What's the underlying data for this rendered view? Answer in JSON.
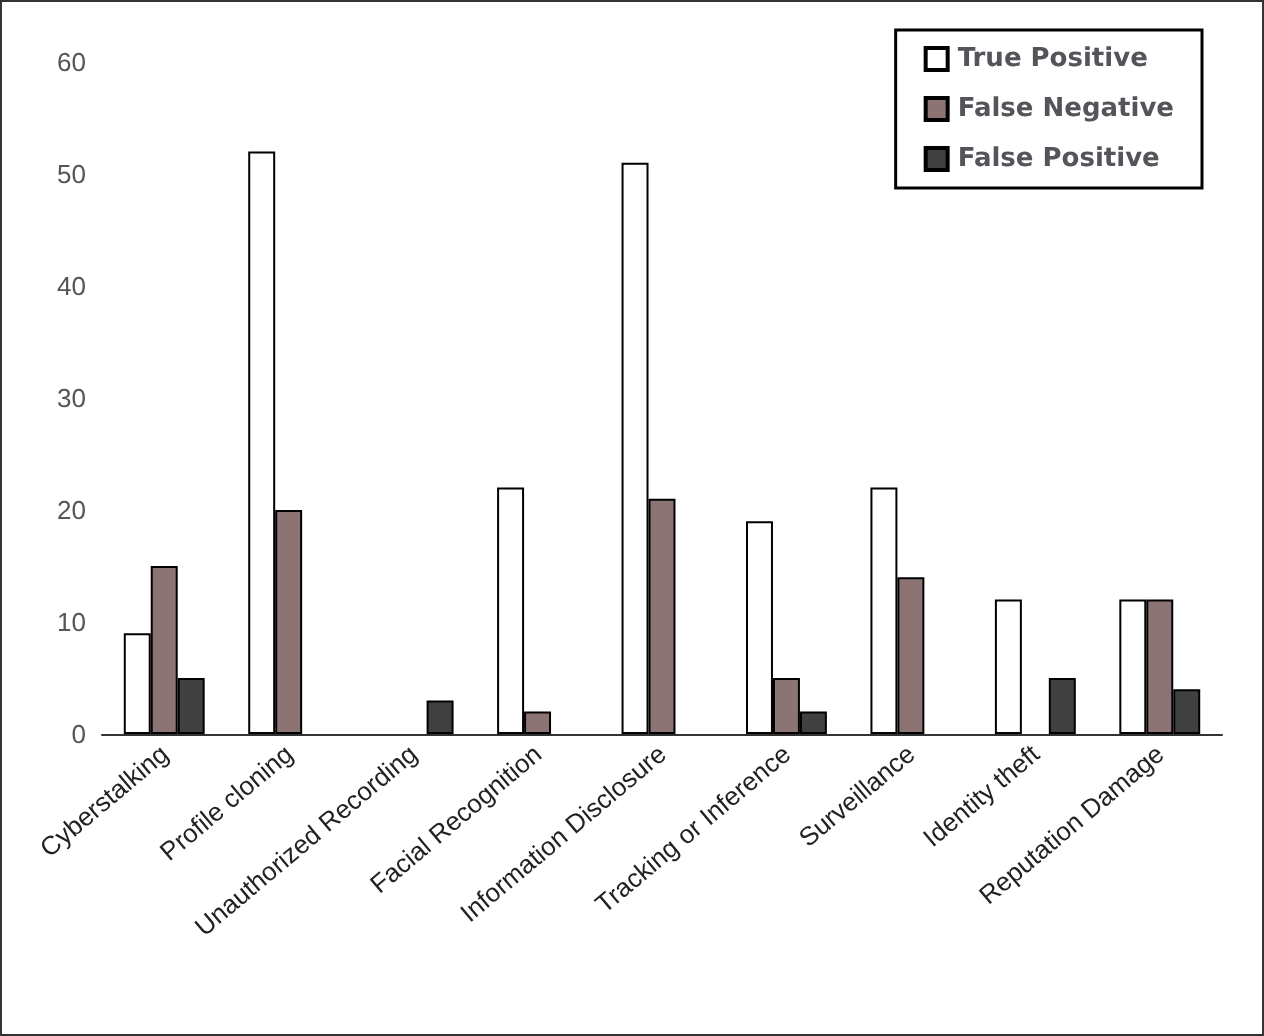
{
  "chart_data": {
    "type": "bar",
    "categories": [
      "Cyberstalking",
      "Profile cloning",
      "Unauthorized Recording",
      "Facial Recognition",
      "Information Disclosure",
      "Tracking or Inference",
      "Surveillance",
      "Identity theft",
      "Reputation Damage"
    ],
    "series": [
      {
        "name": "True Positive",
        "color": "#ffffff",
        "values": [
          9,
          52,
          0,
          22,
          51,
          19,
          22,
          12,
          12
        ]
      },
      {
        "name": "False Negative",
        "color": "#8c7474",
        "values": [
          15,
          20,
          0,
          2,
          21,
          5,
          14,
          0,
          12
        ]
      },
      {
        "name": "False Positive",
        "color": "#404040",
        "values": [
          5,
          0,
          3,
          0,
          0,
          2,
          0,
          5,
          4
        ]
      }
    ],
    "ylim": [
      0,
      60
    ],
    "yticks": [
      0,
      10,
      20,
      30,
      40,
      50,
      60
    ],
    "grid": false,
    "legend": "top right"
  }
}
